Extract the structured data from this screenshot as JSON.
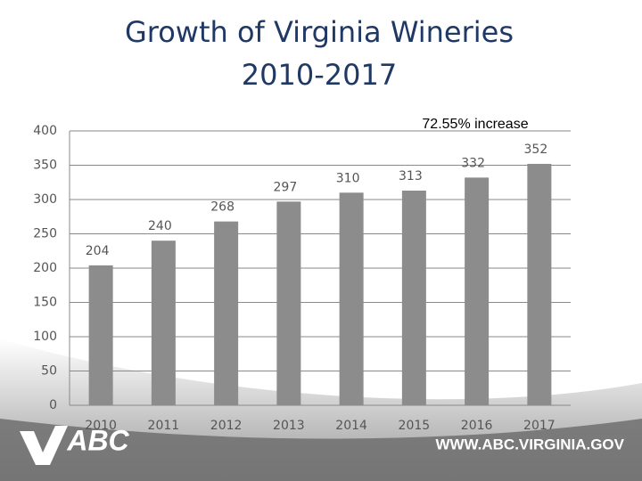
{
  "chart_data": {
    "type": "bar",
    "title": "Growth of Virginia Wineries",
    "subtitle": "2010-2017",
    "annotation": "72.55% increase",
    "categories": [
      "2010",
      "2011",
      "2012",
      "2013",
      "2014",
      "2015",
      "2016",
      "2017"
    ],
    "values": [
      204,
      240,
      268,
      297,
      310,
      313,
      332,
      352
    ],
    "color": "#8c8c8c",
    "ylim": [
      0,
      400
    ],
    "yticks": [
      0,
      50,
      100,
      150,
      200,
      250,
      300,
      350,
      400
    ],
    "grid": true
  },
  "footer": {
    "logo": "ABC",
    "url": "WWW.ABC.VIRGINIA.GOV"
  }
}
